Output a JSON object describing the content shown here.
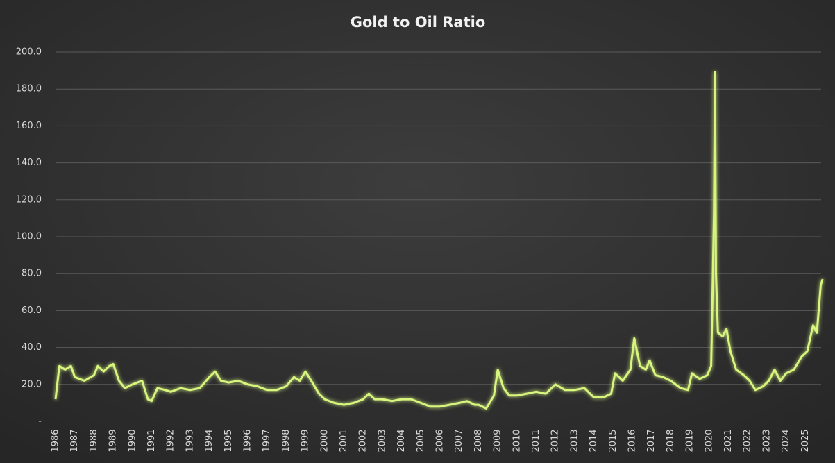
{
  "chart_data": {
    "type": "line",
    "title": "Gold to Oil Ratio",
    "x": [
      1986.0,
      1986.2,
      1986.5,
      1986.8,
      1987.0,
      1987.5,
      1988.0,
      1988.2,
      1988.5,
      1988.8,
      1989.0,
      1989.3,
      1989.6,
      1990.0,
      1990.5,
      1990.8,
      1991.0,
      1991.3,
      1991.7,
      1992.0,
      1992.5,
      1993.0,
      1993.5,
      1994.0,
      1994.3,
      1994.6,
      1995.0,
      1995.5,
      1996.0,
      1996.5,
      1997.0,
      1997.5,
      1998.0,
      1998.4,
      1998.7,
      1999.0,
      1999.3,
      1999.7,
      2000.0,
      2000.5,
      2001.0,
      2001.5,
      2002.0,
      2002.3,
      2002.6,
      2003.0,
      2003.5,
      2004.0,
      2004.5,
      2005.0,
      2005.5,
      2006.0,
      2006.5,
      2007.0,
      2007.4,
      2007.8,
      2008.0,
      2008.4,
      2008.8,
      2009.0,
      2009.3,
      2009.6,
      2010.0,
      2010.5,
      2011.0,
      2011.5,
      2012.0,
      2012.5,
      2013.0,
      2013.5,
      2014.0,
      2014.5,
      2014.9,
      2015.1,
      2015.5,
      2015.9,
      2016.1,
      2016.4,
      2016.7,
      2016.9,
      2017.2,
      2017.6,
      2018.0,
      2018.5,
      2018.9,
      2019.1,
      2019.5,
      2019.9,
      2020.1,
      2020.25,
      2020.3,
      2020.35,
      2020.45,
      2020.7,
      2020.9,
      2021.1,
      2021.4,
      2021.8,
      2022.1,
      2022.4,
      2022.8,
      2023.1,
      2023.4,
      2023.7,
      2024.0,
      2024.4,
      2024.8,
      2025.1,
      2025.4,
      2025.6,
      2025.8,
      2025.9
    ],
    "series": [
      {
        "name": "Gold to Oil Ratio",
        "color": "#d8f57e",
        "values": [
          12,
          30,
          28,
          30,
          24,
          22,
          25,
          30,
          27,
          30,
          31,
          22,
          18,
          20,
          22,
          12,
          11,
          18,
          17,
          16,
          18,
          17,
          18,
          24,
          27,
          22,
          21,
          22,
          20,
          19,
          17,
          17,
          19,
          24,
          22,
          27,
          22,
          15,
          12,
          10,
          9,
          10,
          12,
          15,
          12,
          12,
          11,
          12,
          12,
          10,
          8,
          8,
          9,
          10,
          11,
          9,
          9,
          7,
          14,
          28,
          18,
          14,
          14,
          15,
          16,
          15,
          20,
          17,
          17,
          18,
          13,
          13,
          15,
          26,
          22,
          28,
          45,
          30,
          28,
          33,
          25,
          24,
          22,
          18,
          17,
          26,
          23,
          25,
          30,
          113,
          189,
          80,
          48,
          46,
          50,
          38,
          28,
          25,
          22,
          17,
          19,
          22,
          28,
          22,
          26,
          28,
          35,
          38,
          52,
          48,
          74,
          77
        ]
      }
    ],
    "xlim": [
      1986,
      2026
    ],
    "xticks": [
      1986,
      1987,
      1988,
      1989,
      1990,
      1991,
      1992,
      1993,
      1994,
      1995,
      1996,
      1997,
      1998,
      1999,
      2000,
      2001,
      2002,
      2003,
      2004,
      2005,
      2006,
      2007,
      2008,
      2009,
      2010,
      2011,
      2012,
      2013,
      2014,
      2015,
      2016,
      2017,
      2018,
      2019,
      2020,
      2021,
      2022,
      2023,
      2024,
      2025
    ],
    "ylim": [
      0,
      200
    ],
    "yticks": [
      {
        "value": 0,
        "label": "-"
      },
      {
        "value": 20,
        "label": "20.0"
      },
      {
        "value": 40,
        "label": "40.0"
      },
      {
        "value": 60,
        "label": "60.0"
      },
      {
        "value": 80,
        "label": "80.0"
      },
      {
        "value": 100,
        "label": "100.0"
      },
      {
        "value": 120,
        "label": "120.0"
      },
      {
        "value": 140,
        "label": "140.0"
      },
      {
        "value": 160,
        "label": "160.0"
      },
      {
        "value": 180,
        "label": "180.0"
      },
      {
        "value": 200,
        "label": "200.0"
      }
    ],
    "grid": true
  }
}
